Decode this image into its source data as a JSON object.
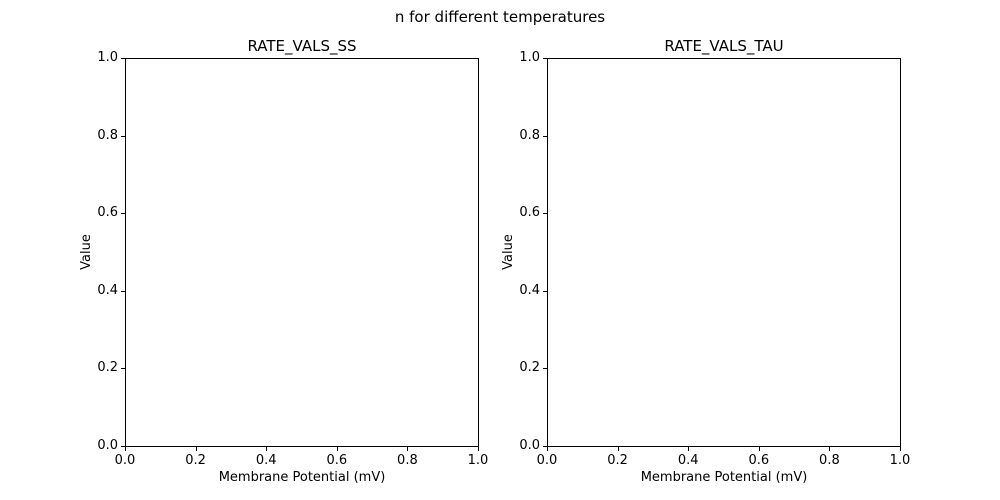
{
  "figure": {
    "suptitle": "n for different temperatures"
  },
  "chart_data": [
    {
      "type": "line",
      "title": "RATE_VALS_SS",
      "xlabel": "Membrane Potential (mV)",
      "ylabel": "Value",
      "xlim": [
        0.0,
        1.0
      ],
      "ylim": [
        0.0,
        1.0
      ],
      "xticks": [
        "0.0",
        "0.2",
        "0.4",
        "0.6",
        "0.8",
        "1.0"
      ],
      "yticks": [
        "0.0",
        "0.2",
        "0.4",
        "0.6",
        "0.8",
        "1.0"
      ],
      "grid": false,
      "legend": false,
      "series": []
    },
    {
      "type": "line",
      "title": "RATE_VALS_TAU",
      "xlabel": "Membrane Potential (mV)",
      "ylabel": "Value",
      "xlim": [
        0.0,
        1.0
      ],
      "ylim": [
        0.0,
        1.0
      ],
      "xticks": [
        "0.0",
        "0.2",
        "0.4",
        "0.6",
        "0.8",
        "1.0"
      ],
      "yticks": [
        "0.0",
        "0.2",
        "0.4",
        "0.6",
        "0.8",
        "1.0"
      ],
      "grid": false,
      "legend": false,
      "series": []
    }
  ]
}
